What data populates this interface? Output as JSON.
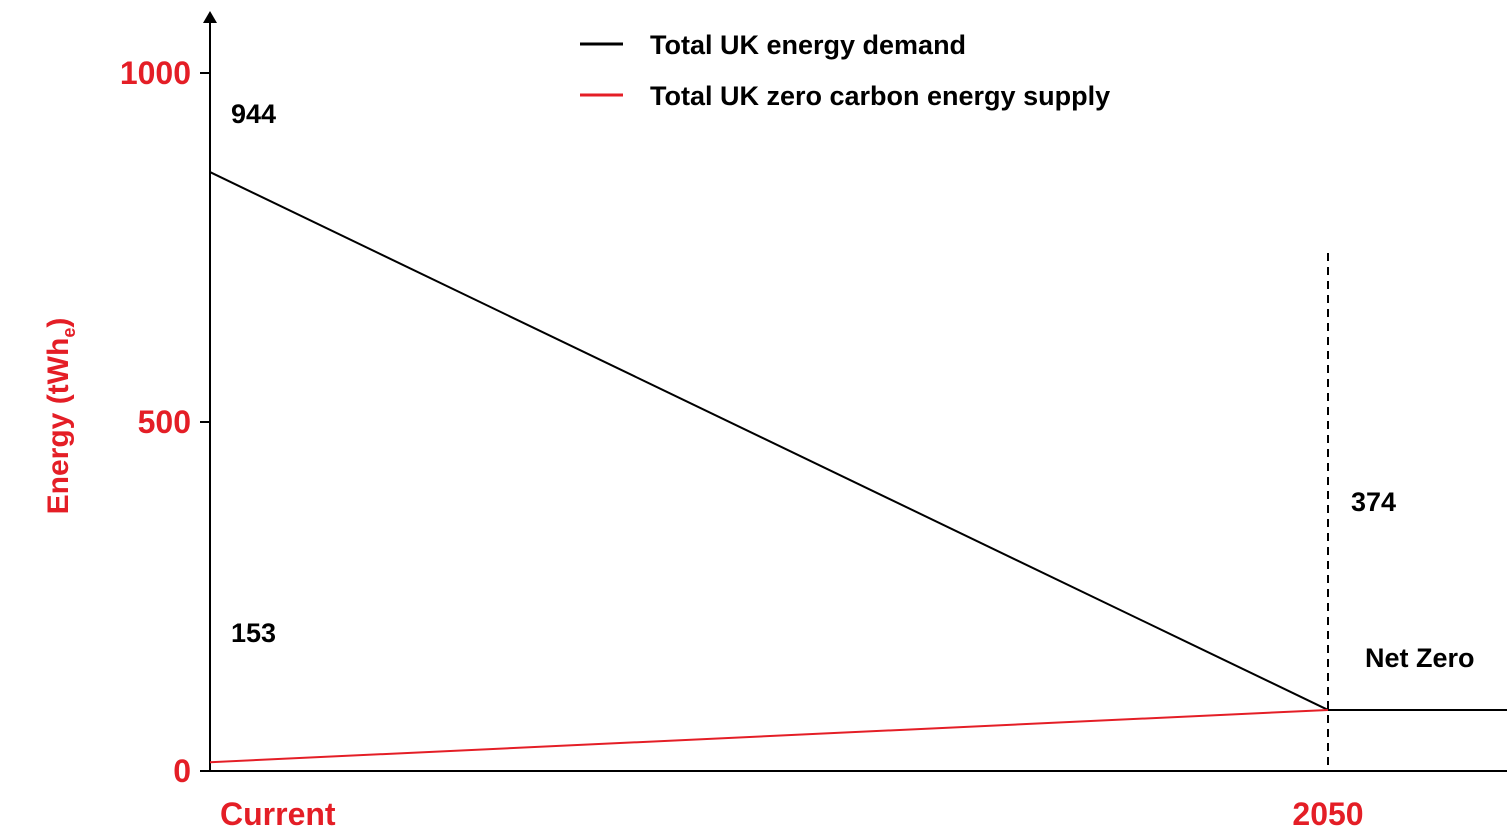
{
  "colors": {
    "accent": "#e41e26",
    "text": "#000000",
    "demand_line": "#000000",
    "supply_line": "#e41e26"
  },
  "chart_data": {
    "type": "line",
    "title": "",
    "xlabel": "",
    "ylabel": "Energy (tWh",
    "ylabel_subscript": "e",
    "ylabel_suffix": ")",
    "ylim": [
      0,
      1000
    ],
    "y_ticks": [
      0,
      500,
      1000
    ],
    "x_tick_labels": [
      "Current",
      "2050"
    ],
    "grid": false,
    "legend_position": "top-center",
    "series": [
      {
        "name": "Total UK energy demand",
        "color": "#000000",
        "points": [
          {
            "x": "Current",
            "y": 944
          },
          {
            "x": "2050",
            "y": 374
          }
        ],
        "continues_after_2050_at": 374
      },
      {
        "name": "Total UK zero carbon energy supply",
        "color": "#e41e26",
        "points": [
          {
            "x": "Current",
            "y": 153
          },
          {
            "x": "2050",
            "y": 374
          }
        ]
      }
    ],
    "data_labels": {
      "demand_start": "944",
      "supply_start": "153",
      "meeting_point": "374"
    },
    "annotations": {
      "net_zero": "Net Zero"
    }
  }
}
